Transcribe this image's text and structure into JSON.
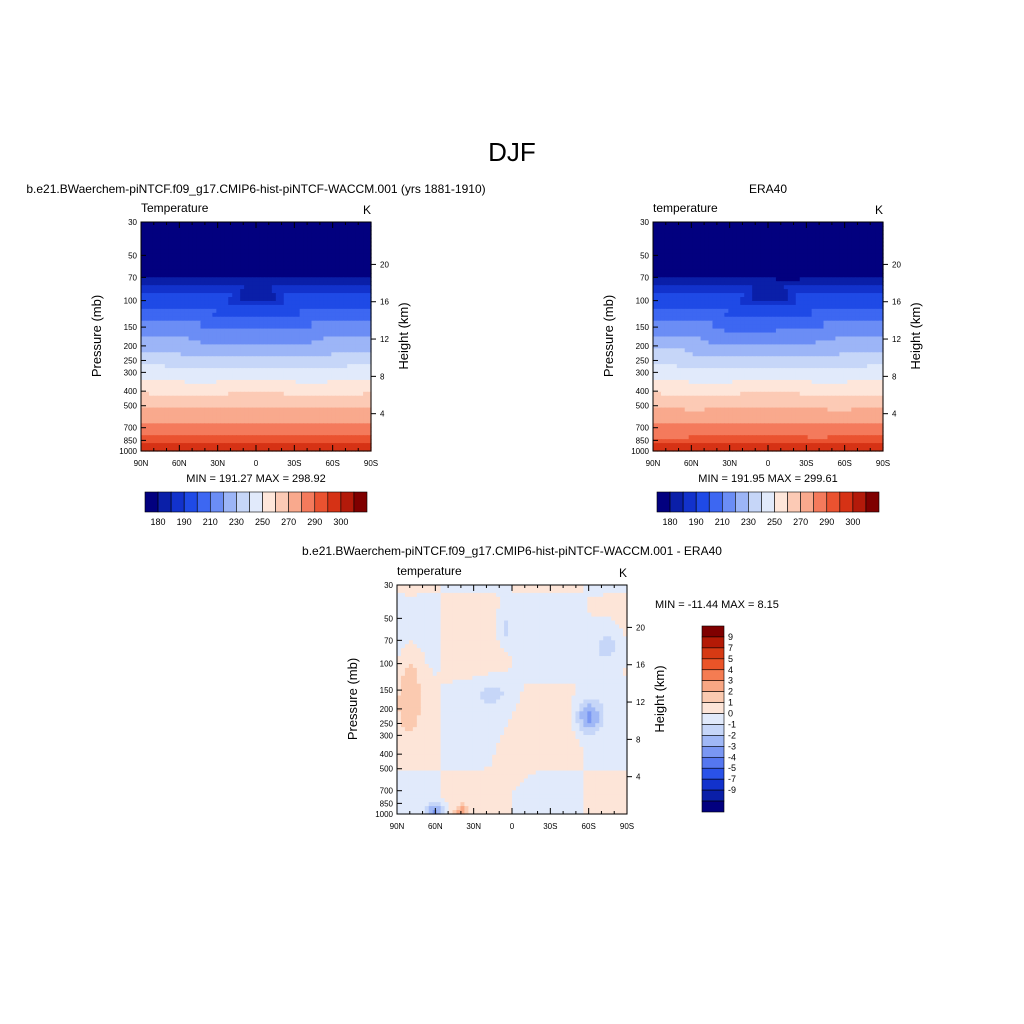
{
  "figure": {
    "main_title": "DJF"
  },
  "colors": {
    "full": [
      "#02007f",
      "#0a1fa8",
      "#1232cc",
      "#1f4ae6",
      "#3d67f2",
      "#6b8df5",
      "#9cb5f7",
      "#c6d6f8",
      "#e1eafb",
      "#fee6da",
      "#fccab5",
      "#f9a98d",
      "#f47a5c",
      "#ea5230",
      "#d63215",
      "#b31a0a",
      "#7f0000"
    ],
    "diff": [
      "#02007f",
      "#0a1fa8",
      "#1232cc",
      "#2a52e8",
      "#5577f0",
      "#7a97f3",
      "#a0b8f6",
      "#c6d6f8",
      "#e1eafb",
      "#fde5d8",
      "#fbcab0",
      "#f9a784",
      "#f47c52",
      "#ea5428",
      "#d63a14",
      "#b41a06",
      "#7f0000"
    ]
  },
  "chart_data": [
    {
      "type": "heatmap",
      "title": "b.e21.BWaerchem-piNTCF.f09_g17.CMIP6-hist-piNTCF-WACCM.001 (yrs 1881-1910)",
      "left_string": "Temperature",
      "right_string": "K",
      "ylabel": "Pressure (mb)",
      "right_axis_label": "Height (km)",
      "x_ticks": [
        "90N",
        "60N",
        "30N",
        "0",
        "30S",
        "60S",
        "90S"
      ],
      "y_ticks": [
        "30",
        "50",
        "70",
        "100",
        "150",
        "200",
        "250",
        "300",
        "400",
        "500",
        "700",
        "850",
        "1000"
      ],
      "height_ticks": [
        "20",
        "16",
        "12",
        "8",
        "4"
      ],
      "stats": "MIN = 191.27  MAX = 298.92",
      "colorbar_labels": [
        "180",
        "190",
        "210",
        "230",
        "250",
        "270",
        "290",
        "300"
      ],
      "min": 191.27,
      "max": 298.92
    },
    {
      "type": "heatmap",
      "title": "ERA40",
      "left_string": "temperature",
      "right_string": "K",
      "ylabel": "Pressure (mb)",
      "right_axis_label": "Height (km)",
      "x_ticks": [
        "90N",
        "60N",
        "30N",
        "0",
        "30S",
        "60S",
        "90S"
      ],
      "y_ticks": [
        "30",
        "50",
        "70",
        "100",
        "150",
        "200",
        "250",
        "300",
        "400",
        "500",
        "700",
        "850",
        "1000"
      ],
      "height_ticks": [
        "20",
        "16",
        "12",
        "8",
        "4"
      ],
      "stats": "MIN = 191.95  MAX = 299.61",
      "colorbar_labels": [
        "180",
        "190",
        "210",
        "230",
        "250",
        "270",
        "290",
        "300"
      ],
      "min": 191.95,
      "max": 299.61
    },
    {
      "type": "heatmap",
      "title": "b.e21.BWaerchem-piNTCF.f09_g17.CMIP6-hist-piNTCF-WACCM.001 - ERA40",
      "left_string": "temperature",
      "right_string": "K",
      "ylabel": "Pressure (mb)",
      "right_axis_label": "Height (km)",
      "x_ticks": [
        "90N",
        "60N",
        "30N",
        "0",
        "30S",
        "60S",
        "90S"
      ],
      "y_ticks": [
        "30",
        "50",
        "70",
        "100",
        "150",
        "200",
        "250",
        "300",
        "400",
        "500",
        "700",
        "850",
        "1000"
      ],
      "height_ticks": [
        "20",
        "16",
        "12",
        "8",
        "4"
      ],
      "stats": "MIN = -11.44  MAX =   8.15",
      "colorbar_labels": [
        "9",
        "7",
        "5",
        "4",
        "3",
        "2",
        "1",
        "0",
        "-1",
        "-2",
        "-3",
        "-4",
        "-5",
        "-7",
        "-9"
      ],
      "min": -11.44,
      "max": 8.15
    }
  ]
}
